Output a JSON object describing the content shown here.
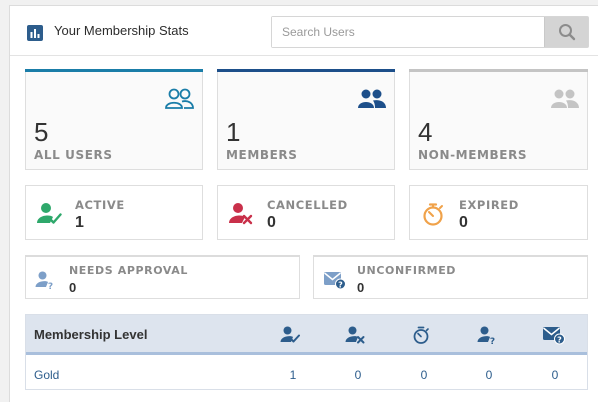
{
  "header": {
    "title": "Your Membership Stats",
    "search_placeholder": "Search Users",
    "search_value": ""
  },
  "summary": [
    {
      "value": "5",
      "label": "ALL USERS",
      "icon": "users-outline-icon",
      "color": "#1a7da8"
    },
    {
      "value": "1",
      "label": "MEMBERS",
      "icon": "users-solid-icon",
      "color": "#1d4f8a"
    },
    {
      "value": "4",
      "label": "NON-MEMBERS",
      "icon": "users-gray-icon",
      "color": "#c4c4c4"
    }
  ],
  "status": [
    {
      "label": "ACTIVE",
      "value": "1",
      "icon": "user-check-icon",
      "color": "#2ea86b"
    },
    {
      "label": "CANCELLED",
      "value": "0",
      "icon": "user-cancel-icon",
      "color": "#c9304a"
    },
    {
      "label": "EXPIRED",
      "value": "0",
      "icon": "stopwatch-icon",
      "color": "#f0a24a"
    }
  ],
  "pending": [
    {
      "label": "NEEDS APPROVAL",
      "value": "0",
      "icon": "user-question-icon",
      "color": "#7d9fc8"
    },
    {
      "label": "UNCONFIRMED",
      "value": "0",
      "icon": "envelope-question-icon",
      "color": "#7d9fc8"
    }
  ],
  "table": {
    "header_label": "Membership Level",
    "column_icons": [
      "user-check-icon",
      "user-cancel-icon",
      "stopwatch-icon",
      "user-question-icon",
      "envelope-question-icon"
    ],
    "icon_color": "#2d5d8c",
    "rows": [
      {
        "level": "Gold",
        "values": [
          "1",
          "0",
          "0",
          "0",
          "0"
        ]
      }
    ]
  }
}
